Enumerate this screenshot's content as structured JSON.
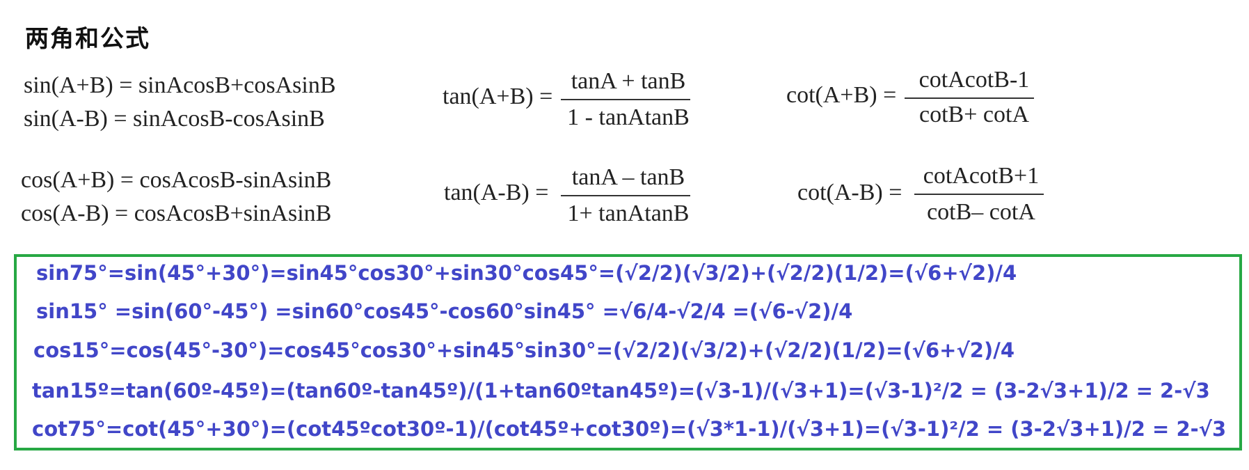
{
  "title": "两角和公式",
  "sin_formulas": [
    "sin(A+B)  =  sinAcosB+cosAsinB",
    "sin(A-B)  =  sinAcosB-cosAsinB"
  ],
  "cos_formulas": [
    "cos(A+B)  =  cosAcosB-sinAsinB",
    "cos(A-B)  =  cosAcosB+sinAsinB"
  ],
  "tan_sum": {
    "lhs": "tan(A+B)  =",
    "numerator": "tanA + tanB",
    "denominator": "1 - tanAtanB"
  },
  "tan_diff": {
    "lhs": "tan(A-B)  =",
    "numerator": "tanA – tanB",
    "denominator": "1+ tanAtanB"
  },
  "cot_sum": {
    "lhs": "cot(A+B)  =",
    "numerator": "cotAcotB-1",
    "denominator": "cotB+ cotA"
  },
  "cot_diff": {
    "lhs": "cot(A-B)  =",
    "numerator": "cotAcotB+1",
    "denominator": "cotB– cotA"
  },
  "examples": [
    "sin75°=sin(45°+30°)=sin45°cos30°+sin30°cos45°=(√2/2)(√3/2)+(√2/2)(1/2)=(√6+√2)/4",
    "sin15° =sin(60°-45°) =sin60°cos45°-cos60°sin45° =√6/4-√2/4 =(√6-√2)/4",
    "cos15°=cos(45°-30°)=cos45°cos30°+sin45°sin30°=(√2/2)(√3/2)+(√2/2)(1/2)=(√6+√2)/4",
    "tan15º=tan(60º-45º)=(tan60º-tan45º)/(1+tan60ºtan45º)=(√3-1)/(√3+1)=(√3-1)²/2 = (3-2√3+1)/2 = 2-√3",
    "cot75°=cot(45°+30°)=(cot45ºcot30º-1)/(cot45º+cot30º)=(√3*1-1)/(√3+1)=(√3-1)²/2 = (3-2√3+1)/2 = 2-√3"
  ],
  "colors": {
    "box_border": "#27a844",
    "example_text": "#4146c8"
  }
}
